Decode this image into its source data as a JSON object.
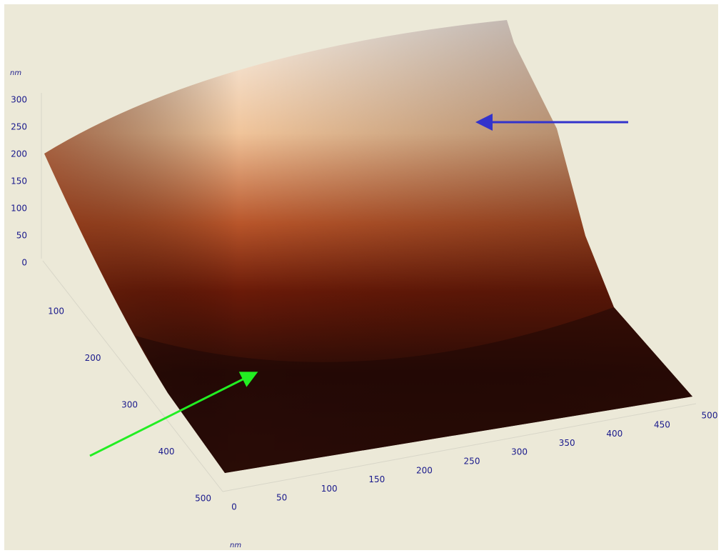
{
  "z_axis": {
    "unit": "nm",
    "ticks": [
      0,
      50,
      100,
      150,
      200,
      250,
      300
    ]
  },
  "y_axis": {
    "ticks": [
      100,
      200,
      300,
      400,
      500
    ]
  },
  "x_axis": {
    "unit": "nm",
    "ticks": [
      0,
      50,
      100,
      150,
      200,
      250,
      300,
      350,
      400,
      450,
      500
    ]
  }
}
